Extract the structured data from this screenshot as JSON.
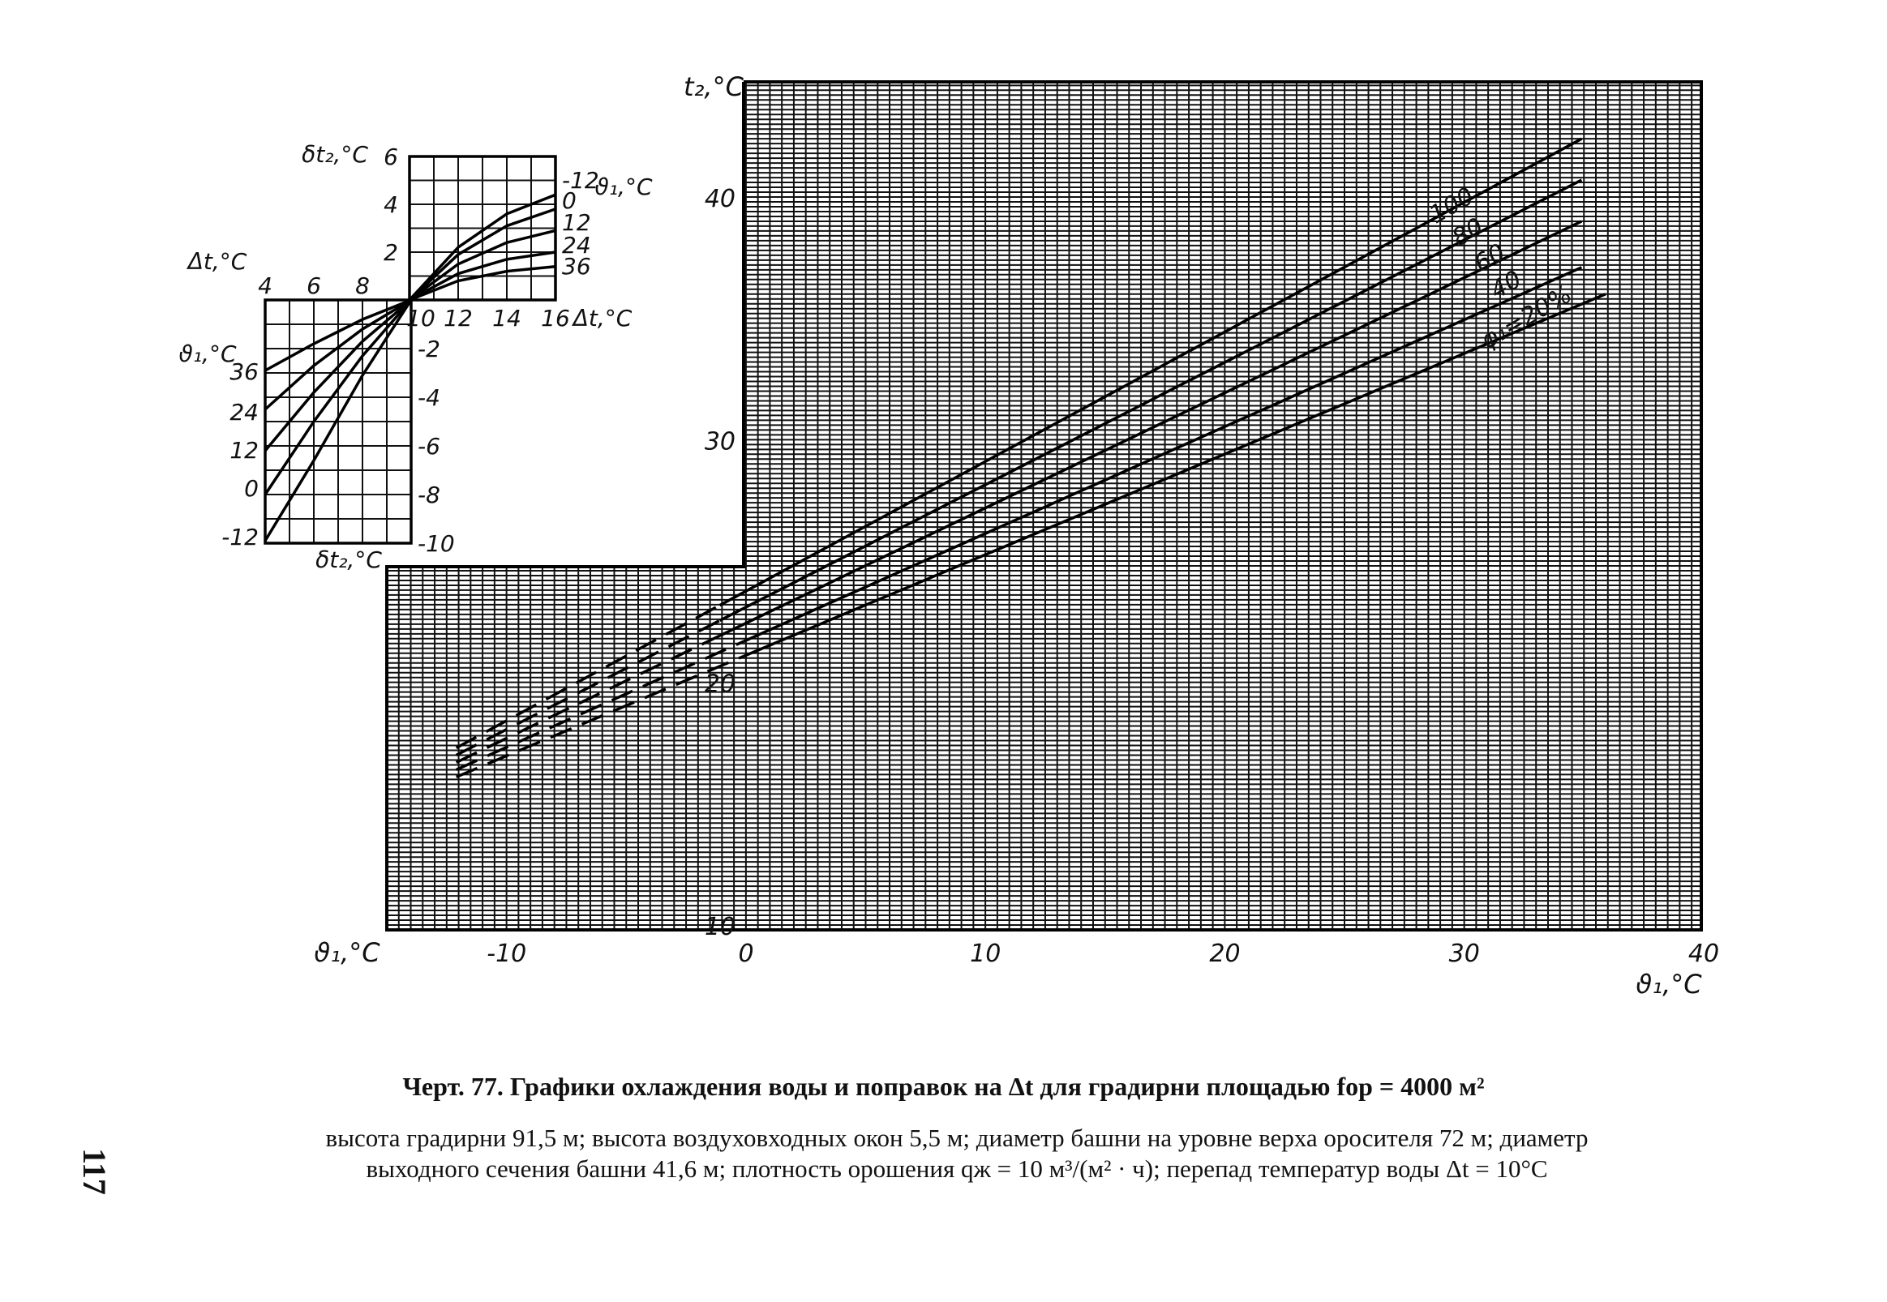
{
  "chart_data": [
    {
      "type": "line",
      "xlabel": "ϑ₁,°C",
      "xlabel_left": "ϑ₁,°C",
      "ylabel": "t₂,°C",
      "xlim": [
        -15,
        40
      ],
      "ylim": [
        10,
        45
      ],
      "x_ticks": [
        "-10",
        "0",
        "10",
        "20",
        "30",
        "40"
      ],
      "y_ticks": [
        "10",
        "20",
        "30",
        "40"
      ],
      "grid": true,
      "series": [
        {
          "name": "100",
          "x": [
            -12,
            35
          ],
          "y": [
            17.5,
            42.6
          ],
          "dashed_below": -1
        },
        {
          "name": "80",
          "x": [
            -12,
            35
          ],
          "y": [
            17.2,
            40.9
          ],
          "dashed_below": -1
        },
        {
          "name": "60",
          "x": [
            -12,
            35
          ],
          "y": [
            16.9,
            39.2
          ],
          "dashed_below": -1
        },
        {
          "name": "40",
          "x": [
            -12,
            35
          ],
          "y": [
            16.6,
            37.3
          ],
          "dashed_below": 0
        },
        {
          "name": "φ₁=20%",
          "x": [
            -12,
            36
          ],
          "y": [
            16.3,
            36.2
          ],
          "dashed_below": 0
        }
      ],
      "line_labels": [
        "100",
        "80",
        "60",
        "40",
        "φ₁=20%"
      ]
    },
    {
      "type": "line",
      "title_left": "δt₂,°C",
      "xlabel": "Δt,°C",
      "ylabel": "δt₂,°C",
      "xlim": [
        10,
        16
      ],
      "ylim": [
        0,
        6
      ],
      "x_ticks": [
        "10",
        "12",
        "14",
        "16"
      ],
      "y_ticks": [
        "2",
        "4",
        "6"
      ],
      "legend_title": "ϑ₁,°C",
      "series": [
        {
          "name": "-12",
          "x": [
            10,
            12,
            14,
            16
          ],
          "y": [
            0,
            2.2,
            3.6,
            4.4
          ]
        },
        {
          "name": "0",
          "x": [
            10,
            12,
            14,
            16
          ],
          "y": [
            0,
            1.9,
            3.1,
            3.8
          ]
        },
        {
          "name": "12",
          "x": [
            10,
            12,
            14,
            16
          ],
          "y": [
            0,
            1.5,
            2.4,
            2.9
          ]
        },
        {
          "name": "24",
          "x": [
            10,
            12,
            14,
            16
          ],
          "y": [
            0,
            1.1,
            1.7,
            2.0
          ]
        },
        {
          "name": "36",
          "x": [
            10,
            12,
            14,
            16
          ],
          "y": [
            0,
            0.8,
            1.2,
            1.4
          ]
        }
      ]
    },
    {
      "type": "line",
      "xlabel": "Δt,°C",
      "ylabel": "ϑ₁,°C",
      "ylabel_bottom": "δt₂,°C",
      "xlim": [
        4,
        10
      ],
      "ylim": [
        -10,
        0
      ],
      "x_ticks": [
        "4",
        "6",
        "8"
      ],
      "y_ticks": [
        "-2",
        "-4",
        "-6",
        "-8",
        "-10"
      ],
      "left_ticks": [
        "36",
        "24",
        "12",
        "0",
        "-12"
      ],
      "series": [
        {
          "name": "36",
          "x": [
            4,
            6,
            8,
            10
          ],
          "y": [
            -2.9,
            -1.8,
            -0.8,
            0
          ]
        },
        {
          "name": "24",
          "x": [
            4,
            6,
            8,
            10
          ],
          "y": [
            -4.5,
            -2.7,
            -1.2,
            0
          ]
        },
        {
          "name": "12",
          "x": [
            4,
            6,
            8,
            10
          ],
          "y": [
            -6.2,
            -3.8,
            -1.7,
            0
          ]
        },
        {
          "name": "0",
          "x": [
            4,
            6,
            8,
            10
          ],
          "y": [
            -8.0,
            -5.0,
            -2.3,
            0
          ]
        },
        {
          "name": "-12",
          "x": [
            4,
            6,
            8,
            10
          ],
          "y": [
            -9.9,
            -6.6,
            -3.1,
            0
          ]
        }
      ]
    }
  ],
  "caption": {
    "title": "Черт. 77. Графики охлаждения воды и поправок на Δt для градирни площадью fор = 4000 м²",
    "line1": "высота градирни 91,5 м; высота воздуховходных окон 5,5 м; диаметр башни на уровне верха оросителя 72 м; диаметр",
    "line2": "выходного сечения башни 41,6 м; плотность орошения qж = 10 м³/(м² · ч); перепад температур воды Δt = 10°C"
  },
  "page_number": "117"
}
